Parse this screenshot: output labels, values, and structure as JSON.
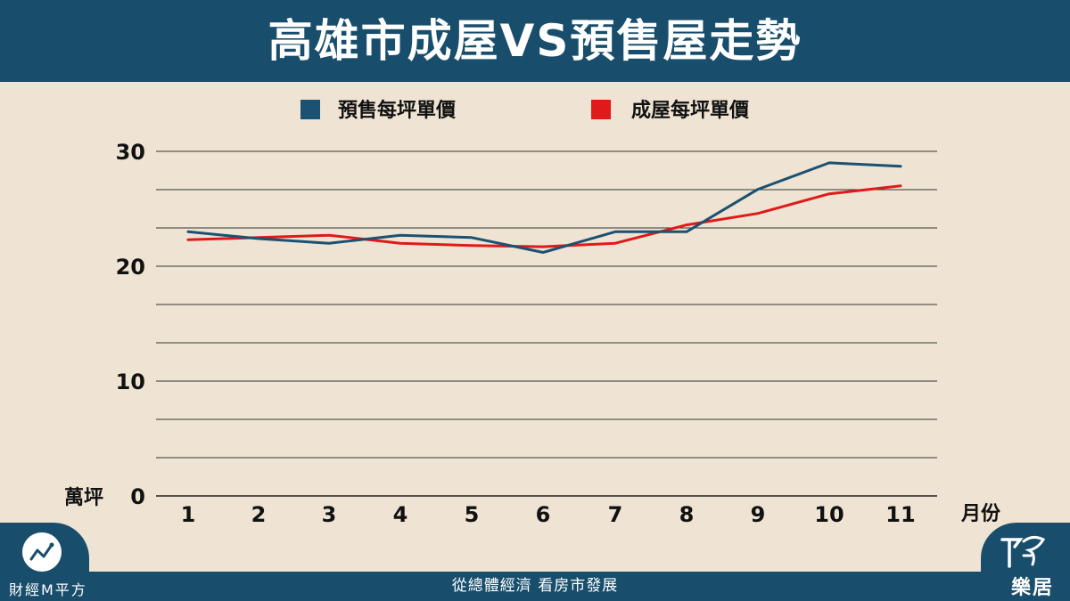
{
  "header": {
    "title": "高雄市成屋VS預售屋走勢"
  },
  "footer": {
    "slogan": "從總體經濟 看房市發展",
    "brand_left": "財經M平方",
    "brand_right": "樂居",
    "brand_left_icon": "chart-trend-icon",
    "brand_right_icon": "leju-logo-icon"
  },
  "colors": {
    "header_bg": "#184e6c",
    "presale": "#1b5172",
    "existing": "#e01a1a",
    "background": "#efe4d3"
  },
  "chart_data": {
    "type": "line",
    "x": [
      1,
      2,
      3,
      4,
      5,
      6,
      7,
      8,
      9,
      10,
      11
    ],
    "series": [
      {
        "name": "預售每坪單價",
        "values": [
          23.0,
          22.4,
          22.0,
          22.7,
          22.5,
          21.2,
          23.0,
          23.0,
          26.7,
          29.0,
          28.7
        ]
      },
      {
        "name": "成屋每坪單價",
        "values": [
          22.3,
          22.5,
          22.7,
          22.0,
          21.8,
          21.7,
          22.0,
          23.6,
          24.6,
          26.3,
          27.0
        ]
      }
    ],
    "ylim": [
      0,
      30
    ],
    "yticks": [
      0,
      10,
      20,
      30
    ],
    "ylabel": "萬坪",
    "xlabel": "月份",
    "grid": true,
    "legend_placement": "top"
  }
}
